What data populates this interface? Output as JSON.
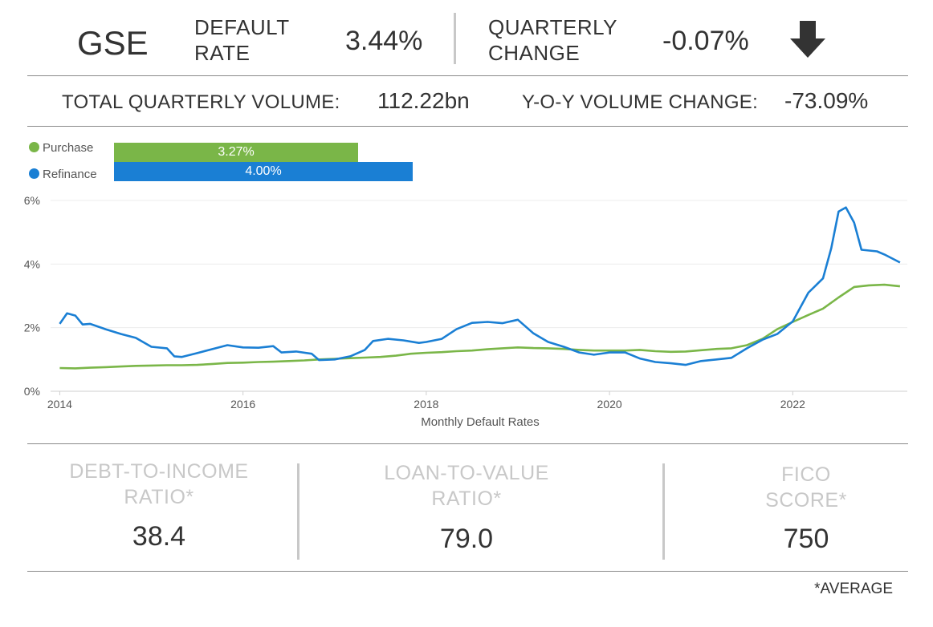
{
  "header": {
    "title": "GSE",
    "default_rate_label": [
      "DEFAULT",
      "RATE"
    ],
    "default_rate_value": "3.44%",
    "quarterly_change_label": [
      "QUARTERLY",
      "CHANGE"
    ],
    "quarterly_change_value": "-0.07%",
    "trend_icon": "down-arrow-icon"
  },
  "volume": {
    "total_label": "TOTAL QUARTERLY VOLUME:",
    "total_value": "112.22bn",
    "yoy_label": "Y-O-Y VOLUME CHANGE:",
    "yoy_value": "-73.09%"
  },
  "legend": [
    {
      "name": "Purchase",
      "value": 3.27,
      "label": "3.27%",
      "color": "#7ab648"
    },
    {
      "name": "Refinance",
      "value": 4.0,
      "label": "4.00%",
      "color": "#1a7fd4"
    }
  ],
  "chart_data": {
    "type": "line",
    "xlabel": "Monthly Default Rates",
    "ylabel": "",
    "xlim": [
      2013.9,
      2023.25
    ],
    "ylim": [
      0,
      6
    ],
    "x_ticks": [
      2014,
      2016,
      2018,
      2020,
      2022
    ],
    "x_tick_labels": [
      "2014",
      "2016",
      "2018",
      "2020",
      "2022"
    ],
    "y_ticks": [
      0,
      2,
      4,
      6
    ],
    "y_tick_labels": [
      "0%",
      "2%",
      "4%",
      "6%"
    ],
    "grid": true,
    "series": [
      {
        "name": "Purchase",
        "color": "#7ab648",
        "points": [
          [
            2014.0,
            0.73
          ],
          [
            2014.17,
            0.72
          ],
          [
            2014.33,
            0.74
          ],
          [
            2014.5,
            0.76
          ],
          [
            2014.67,
            0.78
          ],
          [
            2014.83,
            0.8
          ],
          [
            2015.0,
            0.81
          ],
          [
            2015.17,
            0.82
          ],
          [
            2015.33,
            0.82
          ],
          [
            2015.5,
            0.83
          ],
          [
            2015.67,
            0.86
          ],
          [
            2015.83,
            0.89
          ],
          [
            2016.0,
            0.9
          ],
          [
            2016.17,
            0.92
          ],
          [
            2016.33,
            0.93
          ],
          [
            2016.5,
            0.95
          ],
          [
            2016.67,
            0.97
          ],
          [
            2016.83,
            1.0
          ],
          [
            2017.0,
            1.02
          ],
          [
            2017.17,
            1.04
          ],
          [
            2017.33,
            1.06
          ],
          [
            2017.5,
            1.08
          ],
          [
            2017.67,
            1.12
          ],
          [
            2017.83,
            1.18
          ],
          [
            2018.0,
            1.21
          ],
          [
            2018.17,
            1.23
          ],
          [
            2018.33,
            1.26
          ],
          [
            2018.5,
            1.28
          ],
          [
            2018.67,
            1.32
          ],
          [
            2018.83,
            1.35
          ],
          [
            2019.0,
            1.38
          ],
          [
            2019.17,
            1.36
          ],
          [
            2019.33,
            1.35
          ],
          [
            2019.5,
            1.33
          ],
          [
            2019.67,
            1.3
          ],
          [
            2019.83,
            1.28
          ],
          [
            2020.0,
            1.28
          ],
          [
            2020.17,
            1.28
          ],
          [
            2020.33,
            1.3
          ],
          [
            2020.5,
            1.26
          ],
          [
            2020.67,
            1.24
          ],
          [
            2020.83,
            1.25
          ],
          [
            2021.0,
            1.29
          ],
          [
            2021.17,
            1.33
          ],
          [
            2021.33,
            1.35
          ],
          [
            2021.5,
            1.45
          ],
          [
            2021.67,
            1.65
          ],
          [
            2021.83,
            1.95
          ],
          [
            2022.0,
            2.18
          ],
          [
            2022.17,
            2.4
          ],
          [
            2022.33,
            2.6
          ],
          [
            2022.5,
            2.95
          ],
          [
            2022.67,
            3.28
          ],
          [
            2022.83,
            3.33
          ],
          [
            2023.0,
            3.35
          ],
          [
            2023.17,
            3.3
          ]
        ]
      },
      {
        "name": "Refinance",
        "color": "#1a7fd4",
        "points": [
          [
            2014.0,
            2.12
          ],
          [
            2014.08,
            2.45
          ],
          [
            2014.17,
            2.38
          ],
          [
            2014.25,
            2.1
          ],
          [
            2014.33,
            2.12
          ],
          [
            2014.5,
            1.95
          ],
          [
            2014.67,
            1.8
          ],
          [
            2014.83,
            1.68
          ],
          [
            2015.0,
            1.4
          ],
          [
            2015.17,
            1.35
          ],
          [
            2015.25,
            1.1
          ],
          [
            2015.33,
            1.08
          ],
          [
            2015.5,
            1.2
          ],
          [
            2015.67,
            1.33
          ],
          [
            2015.83,
            1.45
          ],
          [
            2016.0,
            1.38
          ],
          [
            2016.17,
            1.37
          ],
          [
            2016.33,
            1.42
          ],
          [
            2016.42,
            1.22
          ],
          [
            2016.58,
            1.25
          ],
          [
            2016.75,
            1.18
          ],
          [
            2016.83,
            0.98
          ],
          [
            2017.0,
            1.0
          ],
          [
            2017.17,
            1.1
          ],
          [
            2017.33,
            1.3
          ],
          [
            2017.42,
            1.58
          ],
          [
            2017.58,
            1.65
          ],
          [
            2017.75,
            1.6
          ],
          [
            2017.92,
            1.52
          ],
          [
            2018.0,
            1.55
          ],
          [
            2018.17,
            1.65
          ],
          [
            2018.33,
            1.95
          ],
          [
            2018.5,
            2.15
          ],
          [
            2018.67,
            2.18
          ],
          [
            2018.83,
            2.14
          ],
          [
            2019.0,
            2.25
          ],
          [
            2019.17,
            1.82
          ],
          [
            2019.33,
            1.55
          ],
          [
            2019.5,
            1.4
          ],
          [
            2019.67,
            1.22
          ],
          [
            2019.83,
            1.15
          ],
          [
            2020.0,
            1.22
          ],
          [
            2020.17,
            1.22
          ],
          [
            2020.33,
            1.03
          ],
          [
            2020.5,
            0.92
          ],
          [
            2020.67,
            0.88
          ],
          [
            2020.83,
            0.83
          ],
          [
            2021.0,
            0.95
          ],
          [
            2021.17,
            1.0
          ],
          [
            2021.33,
            1.05
          ],
          [
            2021.5,
            1.35
          ],
          [
            2021.67,
            1.62
          ],
          [
            2021.83,
            1.8
          ],
          [
            2022.0,
            2.2
          ],
          [
            2022.17,
            3.1
          ],
          [
            2022.33,
            3.55
          ],
          [
            2022.42,
            4.5
          ],
          [
            2022.5,
            5.65
          ],
          [
            2022.58,
            5.78
          ],
          [
            2022.67,
            5.3
          ],
          [
            2022.75,
            4.45
          ],
          [
            2022.92,
            4.4
          ],
          [
            2023.0,
            4.3
          ],
          [
            2023.17,
            4.05
          ]
        ]
      }
    ]
  },
  "stats": [
    {
      "title": [
        "DEBT-TO-INCOME",
        "RATIO*"
      ],
      "value": "38.4"
    },
    {
      "title": [
        "LOAN-TO-VALUE",
        "RATIO*"
      ],
      "value": "79.0"
    },
    {
      "title": [
        "FICO",
        "SCORE*"
      ],
      "value": "750"
    }
  ],
  "footnote": "*AVERAGE"
}
